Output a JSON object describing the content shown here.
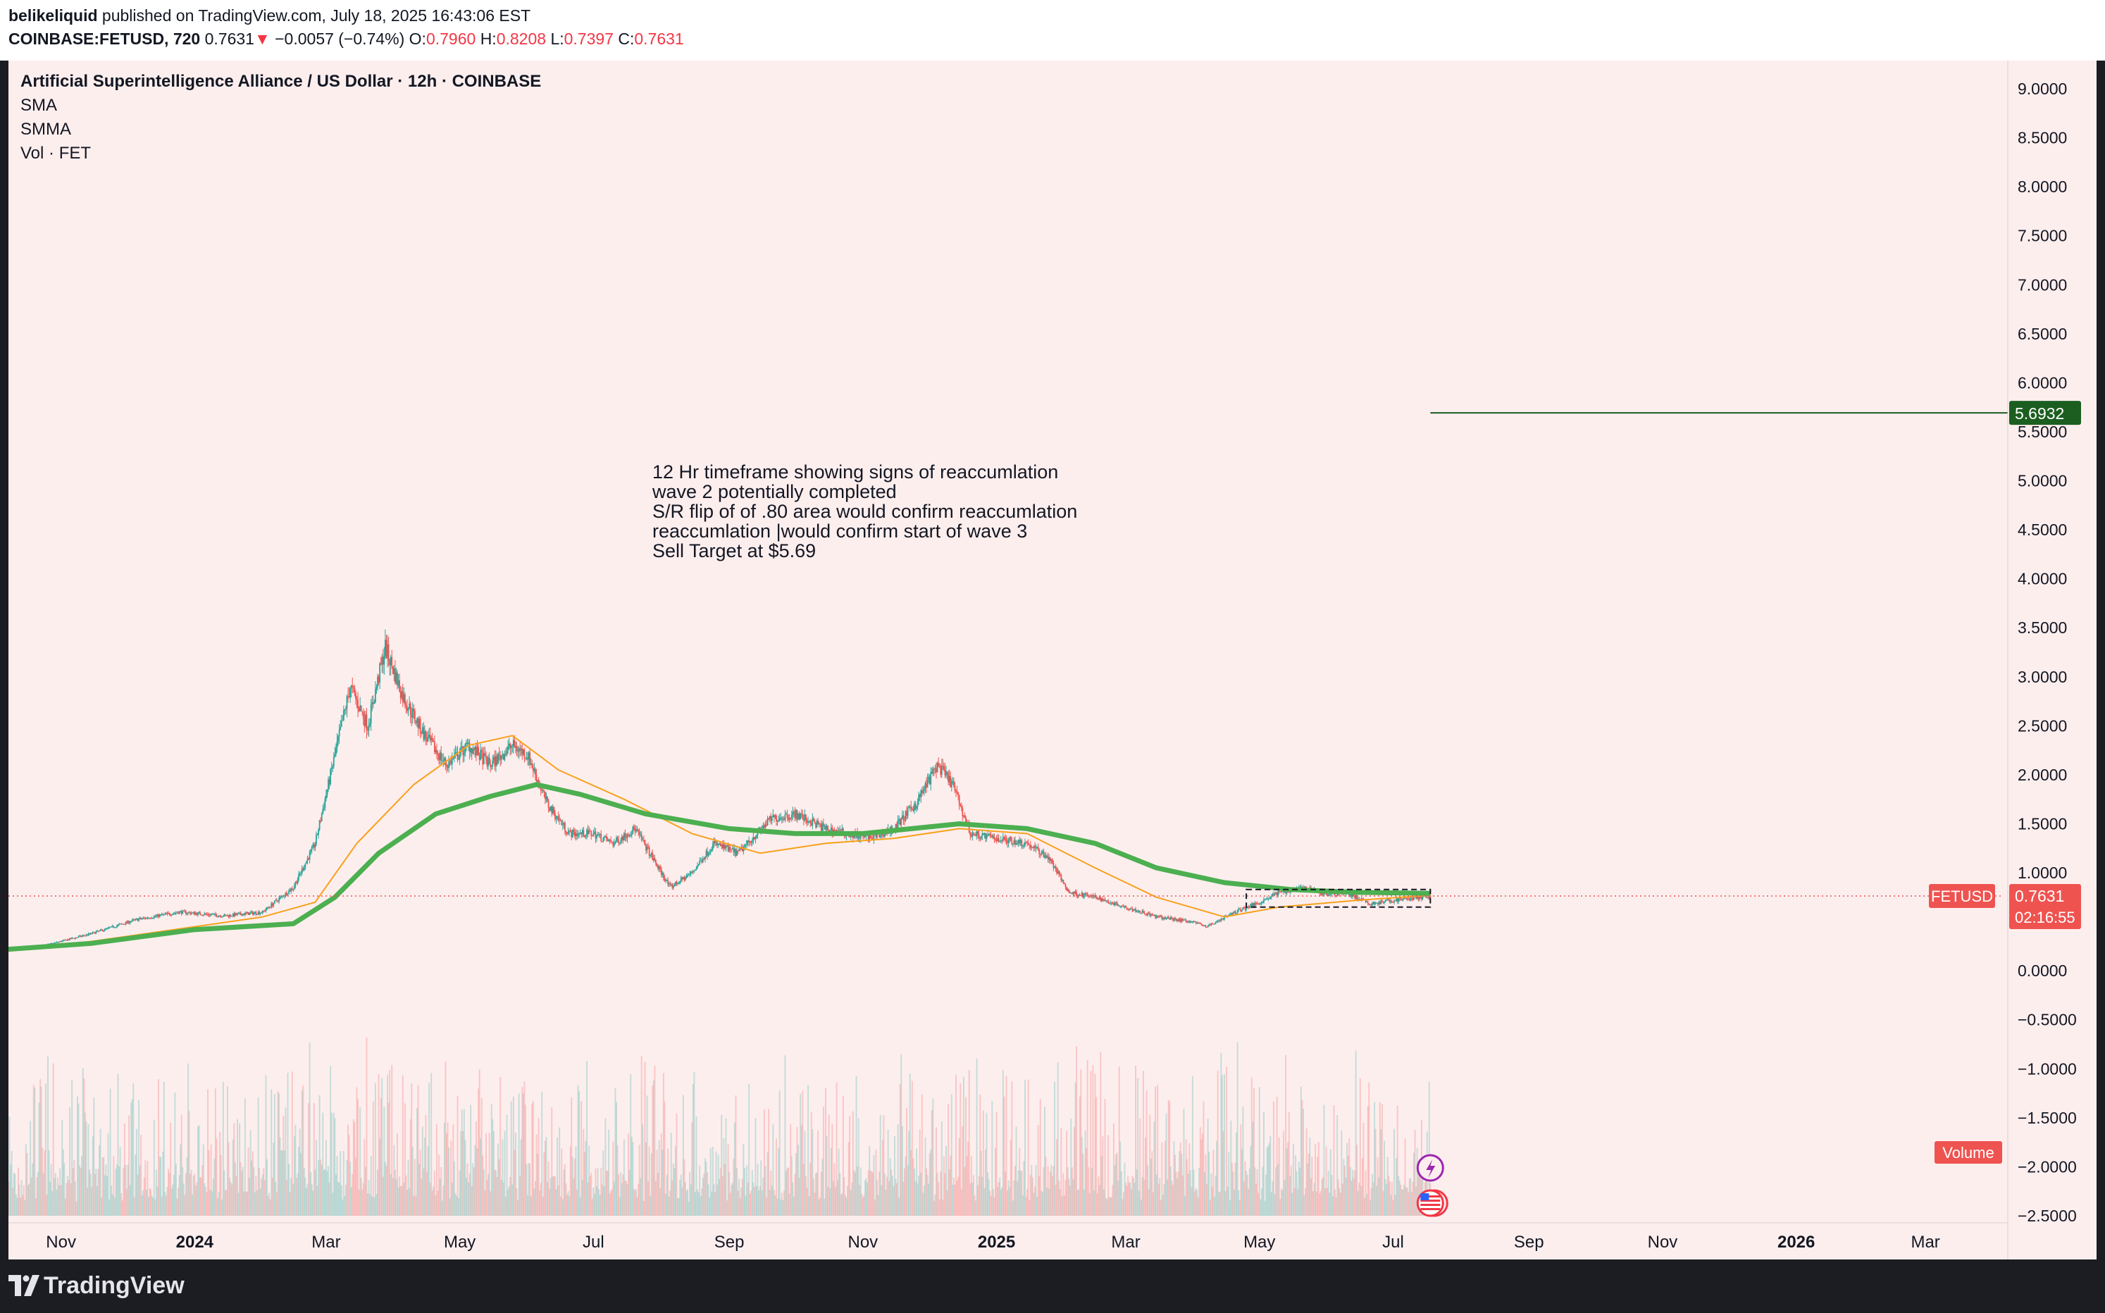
{
  "header": {
    "author": "belikeliquid",
    "published_text": "published on TradingView.com, July 18, 2025 16:43:06 EST",
    "symbol": "COINBASE:FETUSD, 720",
    "price": "0.7631",
    "change_arrow": "▼",
    "change": "−0.0057 (−0.74%)",
    "o_label": "O:",
    "o_value": "0.7960",
    "h_label": "H:",
    "h_value": "0.8208",
    "l_label": "L:",
    "l_value": "0.7397",
    "c_label": "C:",
    "c_value": "0.7631"
  },
  "legend": {
    "title": "Artificial Superintelligence Alliance / US Dollar · 12h · COINBASE",
    "ind1": "SMA",
    "ind2": "SMMA",
    "ind3": "Vol · FET"
  },
  "annotation": [
    "12 Hr timeframe showing signs of reaccumlation",
    "wave 2 potentially completed",
    "S/R flip of of .80 area would confirm reaccumlation",
    "reaccumlation |would confirm start of wave 3",
    "Sell Target at $5.69"
  ],
  "footer": {
    "brand": "TradingView",
    "logo_icon": "tradingview-logo-icon"
  },
  "colors": {
    "bull": "#26a69a",
    "bear": "#ef5350",
    "sma": "#f7a11a",
    "smma": "#4caf50",
    "target": "#1b5e20",
    "price_line": "#ef5350",
    "background": "#fdeeee"
  },
  "chart_data": {
    "type": "candlestick",
    "title": "Artificial Superintelligence Alliance / US Dollar · 12h · COINBASE",
    "xlabel": "",
    "ylabel": "",
    "ylim": [
      -2.5,
      9.0
    ],
    "y_ticks": [
      "9.0000",
      "8.5000",
      "8.0000",
      "7.5000",
      "7.0000",
      "6.5000",
      "6.0000",
      "5.5000",
      "5.0000",
      "4.5000",
      "4.0000",
      "3.5000",
      "3.0000",
      "2.5000",
      "2.0000",
      "1.5000",
      "1.0000",
      "0.0000",
      "−0.5000",
      "−1.0000",
      "−1.5000",
      "−2.0000",
      "−2.5000"
    ],
    "x_ticks": [
      "Nov",
      "2024",
      "Mar",
      "May",
      "Jul",
      "Sep",
      "Nov",
      "2025",
      "Mar",
      "May",
      "Jul",
      "Sep",
      "Nov",
      "2026",
      "Mar"
    ],
    "x_tick_dates": [
      "2023-11-01",
      "2024-01-01",
      "2024-03-01",
      "2024-05-01",
      "2024-07-01",
      "2024-09-01",
      "2024-11-01",
      "2025-01-01",
      "2025-03-01",
      "2025-05-01",
      "2025-07-01",
      "2025-09-01",
      "2025-11-01",
      "2026-01-01",
      "2026-03-01"
    ],
    "x_range": [
      "2023-10-08",
      "2026-04-05"
    ],
    "price_path": [
      [
        "2023-10-08",
        0.22
      ],
      [
        "2023-10-25",
        0.26
      ],
      [
        "2023-11-15",
        0.38
      ],
      [
        "2023-12-05",
        0.52
      ],
      [
        "2023-12-25",
        0.6
      ],
      [
        "2024-01-15",
        0.56
      ],
      [
        "2024-02-01",
        0.6
      ],
      [
        "2024-02-15",
        0.85
      ],
      [
        "2024-02-25",
        1.3
      ],
      [
        "2024-03-05",
        2.2
      ],
      [
        "2024-03-12",
        2.9
      ],
      [
        "2024-03-20",
        2.5
      ],
      [
        "2024-03-28",
        3.3
      ],
      [
        "2024-04-05",
        2.8
      ],
      [
        "2024-04-15",
        2.4
      ],
      [
        "2024-04-25",
        2.1
      ],
      [
        "2024-05-05",
        2.3
      ],
      [
        "2024-05-15",
        2.1
      ],
      [
        "2024-05-25",
        2.3
      ],
      [
        "2024-06-01",
        2.2
      ],
      [
        "2024-06-10",
        1.7
      ],
      [
        "2024-06-20",
        1.4
      ],
      [
        "2024-07-01",
        1.4
      ],
      [
        "2024-07-10",
        1.3
      ],
      [
        "2024-07-20",
        1.45
      ],
      [
        "2024-08-05",
        0.85
      ],
      [
        "2024-08-15",
        1.0
      ],
      [
        "2024-08-25",
        1.3
      ],
      [
        "2024-09-05",
        1.2
      ],
      [
        "2024-09-20",
        1.55
      ],
      [
        "2024-10-01",
        1.6
      ],
      [
        "2024-10-15",
        1.45
      ],
      [
        "2024-10-25",
        1.4
      ],
      [
        "2024-11-05",
        1.35
      ],
      [
        "2024-11-15",
        1.45
      ],
      [
        "2024-11-25",
        1.7
      ],
      [
        "2024-12-05",
        2.1
      ],
      [
        "2024-12-12",
        1.9
      ],
      [
        "2024-12-20",
        1.4
      ],
      [
        "2025-01-01",
        1.35
      ],
      [
        "2025-01-15",
        1.3
      ],
      [
        "2025-01-25",
        1.15
      ],
      [
        "2025-02-03",
        0.8
      ],
      [
        "2025-02-15",
        0.75
      ],
      [
        "2025-03-01",
        0.65
      ],
      [
        "2025-03-15",
        0.55
      ],
      [
        "2025-04-01",
        0.5
      ],
      [
        "2025-04-07",
        0.45
      ],
      [
        "2025-04-20",
        0.6
      ],
      [
        "2025-05-01",
        0.7
      ],
      [
        "2025-05-10",
        0.8
      ],
      [
        "2025-05-20",
        0.85
      ],
      [
        "2025-06-01",
        0.78
      ],
      [
        "2025-06-10",
        0.8
      ],
      [
        "2025-06-20",
        0.68
      ],
      [
        "2025-07-01",
        0.72
      ],
      [
        "2025-07-10",
        0.74
      ],
      [
        "2025-07-18",
        0.7631
      ]
    ],
    "series": [
      {
        "values": [
          [
            "2023-10-08",
            0.2
          ],
          [
            "2023-11-15",
            0.3
          ],
          [
            "2024-01-01",
            0.45
          ],
          [
            "2024-02-01",
            0.55
          ],
          [
            "2024-02-25",
            0.7
          ],
          [
            "2024-03-15",
            1.3
          ],
          [
            "2024-04-10",
            1.9
          ],
          [
            "2024-05-05",
            2.3
          ],
          [
            "2024-05-25",
            2.4
          ],
          [
            "2024-06-15",
            2.05
          ],
          [
            "2024-07-15",
            1.75
          ],
          [
            "2024-08-15",
            1.4
          ],
          [
            "2024-09-15",
            1.2
          ],
          [
            "2024-10-15",
            1.3
          ],
          [
            "2024-11-15",
            1.35
          ],
          [
            "2024-12-15",
            1.45
          ],
          [
            "2025-01-15",
            1.4
          ],
          [
            "2025-02-15",
            1.05
          ],
          [
            "2025-03-15",
            0.75
          ],
          [
            "2025-04-15",
            0.55
          ],
          [
            "2025-05-10",
            0.65
          ],
          [
            "2025-06-15",
            0.72
          ],
          [
            "2025-07-18",
            0.77
          ]
        ]
      },
      {
        "values": [
          [
            "2023-10-08",
            0.22
          ],
          [
            "2023-11-15",
            0.28
          ],
          [
            "2024-01-01",
            0.42
          ],
          [
            "2024-02-15",
            0.48
          ],
          [
            "2024-03-05",
            0.75
          ],
          [
            "2024-03-25",
            1.2
          ],
          [
            "2024-04-20",
            1.6
          ],
          [
            "2024-05-15",
            1.78
          ],
          [
            "2024-06-05",
            1.9
          ],
          [
            "2024-06-25",
            1.8
          ],
          [
            "2024-07-25",
            1.6
          ],
          [
            "2024-09-01",
            1.45
          ],
          [
            "2024-10-01",
            1.4
          ],
          [
            "2024-11-01",
            1.4
          ],
          [
            "2024-12-15",
            1.5
          ],
          [
            "2025-01-15",
            1.45
          ],
          [
            "2025-02-15",
            1.3
          ],
          [
            "2025-03-15",
            1.05
          ],
          [
            "2025-04-15",
            0.9
          ],
          [
            "2025-05-15",
            0.83
          ],
          [
            "2025-06-15",
            0.8
          ],
          [
            "2025-07-18",
            0.79
          ]
        ]
      }
    ],
    "price_marker": {
      "symbol": "FETUSD",
      "value": "0.7631",
      "countdown": "02:16:55"
    },
    "target_line": {
      "value": 5.6932,
      "label": "5.6932",
      "start": "2025-07-18",
      "end": "2026-04-05"
    },
    "range_box": {
      "start": "2025-04-25",
      "end": "2025-07-18",
      "top": 0.83,
      "bottom": 0.65
    },
    "volume_label": "Volume",
    "grid": false,
    "legend": "top-left"
  }
}
